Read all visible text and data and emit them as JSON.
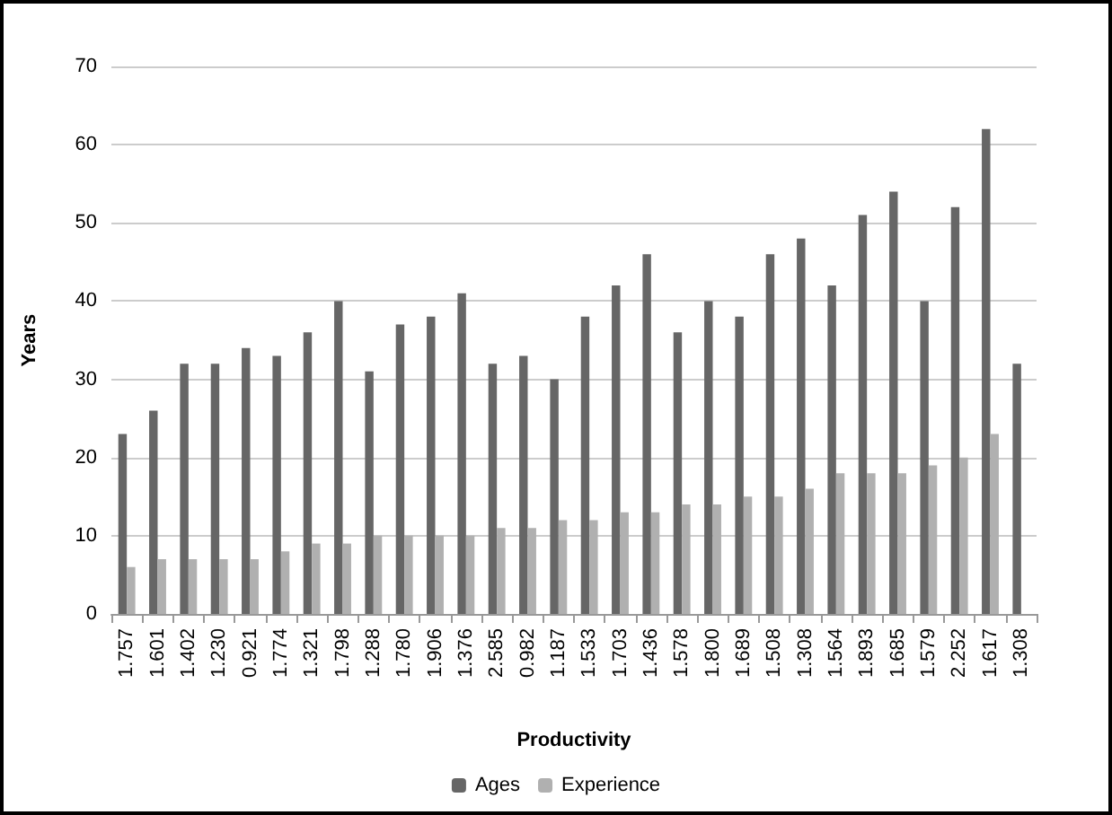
{
  "chart_data": {
    "type": "bar",
    "xlabel": "Productivity",
    "ylabel": "Years",
    "categories": [
      "1.757",
      "1.601",
      "1.402",
      "1.230",
      "0.921",
      "1.774",
      "1.321",
      "1.798",
      "1.288",
      "1.780",
      "1.906",
      "1.376",
      "2.585",
      "0.982",
      "1.187",
      "1.533",
      "1.703",
      "1.436",
      "1.578",
      "1.800",
      "1.689",
      "1.508",
      "1.308",
      "1.564",
      "1.893",
      "1.685",
      "1.579",
      "2.252",
      "1.617",
      "1.308"
    ],
    "series": [
      {
        "name": "Ages",
        "color": "#666666",
        "values": [
          23,
          26,
          32,
          32,
          34,
          33,
          36,
          40,
          31,
          37,
          38,
          41,
          32,
          33,
          30,
          38,
          42,
          46,
          36,
          40,
          38,
          46,
          48,
          42,
          51,
          54,
          40,
          52,
          62,
          32
        ]
      },
      {
        "name": "Experience",
        "color": "#b0b0b0",
        "values": [
          6,
          7,
          7,
          7,
          7,
          8,
          9,
          9,
          10,
          10,
          10,
          10,
          11,
          11,
          12,
          12,
          13,
          13,
          14,
          14,
          15,
          15,
          16,
          18,
          18,
          18,
          19,
          20,
          23,
          null
        ]
      }
    ],
    "ylim": [
      0,
      70
    ],
    "yticks": [
      0,
      10,
      20,
      30,
      40,
      50,
      60,
      70
    ],
    "grid": "y",
    "legend": "bottom"
  }
}
